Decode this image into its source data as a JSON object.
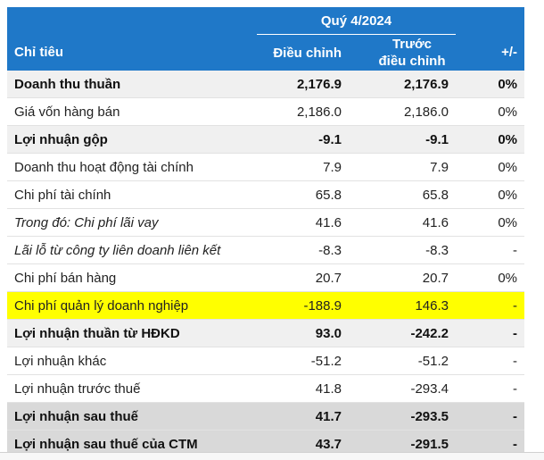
{
  "header": {
    "period": "Quý 4/2024",
    "col_label": "Chỉ tiêu",
    "col_adjusted": "Điều chỉnh",
    "col_before_line1": "Trước",
    "col_before_line2": "điều chỉnh",
    "col_change": "+/-"
  },
  "rows": [
    {
      "label": "Doanh thu thuần",
      "adjusted": "2,176.9",
      "before": "2,176.9",
      "change": "0%"
    },
    {
      "label": "Giá vốn hàng bán",
      "adjusted": "2,186.0",
      "before": "2,186.0",
      "change": "0%"
    },
    {
      "label": "Lợi nhuận gộp",
      "adjusted": "-9.1",
      "before": "-9.1",
      "change": "0%"
    },
    {
      "label": "Doanh thu hoạt động tài chính",
      "adjusted": "7.9",
      "before": "7.9",
      "change": "0%"
    },
    {
      "label": "Chi phí tài chính",
      "adjusted": "65.8",
      "before": "65.8",
      "change": "0%"
    },
    {
      "label": "Trong đó: Chi phí lãi vay",
      "adjusted": "41.6",
      "before": "41.6",
      "change": "0%"
    },
    {
      "label": "Lãi lỗ từ công ty liên doanh liên kết",
      "adjusted": "-8.3",
      "before": "-8.3",
      "change": "-"
    },
    {
      "label": "Chi phí bán hàng",
      "adjusted": "20.7",
      "before": "20.7",
      "change": "0%"
    },
    {
      "label": "Chi phí quản lý doanh nghiệp",
      "adjusted": "-188.9",
      "before": "146.3",
      "change": "-"
    },
    {
      "label": "Lợi nhuận thuần từ HĐKD",
      "adjusted": "93.0",
      "before": "-242.2",
      "change": "-"
    },
    {
      "label": "Lợi nhuận khác",
      "adjusted": "-51.2",
      "before": "-51.2",
      "change": "-"
    },
    {
      "label": "Lợi nhuận trước thuế",
      "adjusted": "41.8",
      "before": "-293.4",
      "change": "-"
    },
    {
      "label": "Lợi nhuận sau thuế",
      "adjusted": "41.7",
      "before": "-293.5",
      "change": "-"
    },
    {
      "label": "Lợi nhuận sau thuế của CTM",
      "adjusted": "43.7",
      "before": "-291.5",
      "change": "-"
    }
  ],
  "colors": {
    "header_bg": "#1f78c8",
    "highlight": "#ffff00",
    "bold_row_bg": "#f0f0f0",
    "shaded_row_bg": "#d9d9d9"
  }
}
